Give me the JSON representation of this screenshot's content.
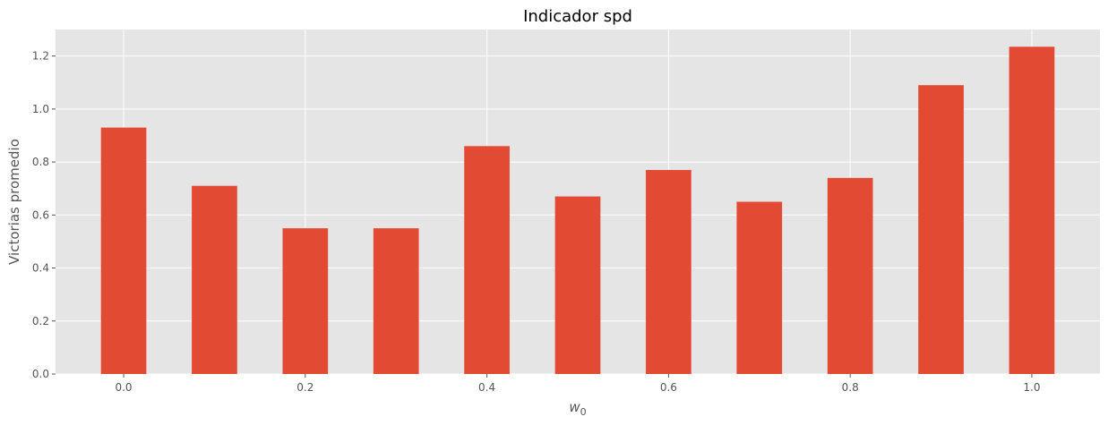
{
  "chart_data": {
    "type": "bar",
    "title": "Indicador spd",
    "xlabel": "w",
    "xlabel_subscript": "0",
    "ylabel": "Victorias promedio",
    "x": [
      0.0,
      0.1,
      0.2,
      0.3,
      0.4,
      0.5,
      0.6,
      0.7,
      0.8,
      0.9,
      1.0
    ],
    "values": [
      0.93,
      0.71,
      0.55,
      0.55,
      0.86,
      0.67,
      0.77,
      0.65,
      0.74,
      1.09,
      1.235
    ],
    "bar_width": 0.05,
    "xlim": [
      -0.075,
      1.075
    ],
    "ylim": [
      0,
      1.3
    ],
    "xticks": [
      0.0,
      0.2,
      0.4,
      0.6,
      0.8,
      1.0
    ],
    "xtick_labels": [
      "0.0",
      "0.2",
      "0.4",
      "0.6",
      "0.8",
      "1.0"
    ],
    "yticks": [
      0.0,
      0.2,
      0.4,
      0.6,
      0.8,
      1.0,
      1.2
    ],
    "ytick_labels": [
      "0.0",
      "0.2",
      "0.4",
      "0.6",
      "0.8",
      "1.0",
      "1.2"
    ],
    "grid": true,
    "bar_color": "#E24A33",
    "background_color": "#E5E5E5",
    "grid_color": "#FFFFFF",
    "tick_color": "#555555"
  }
}
